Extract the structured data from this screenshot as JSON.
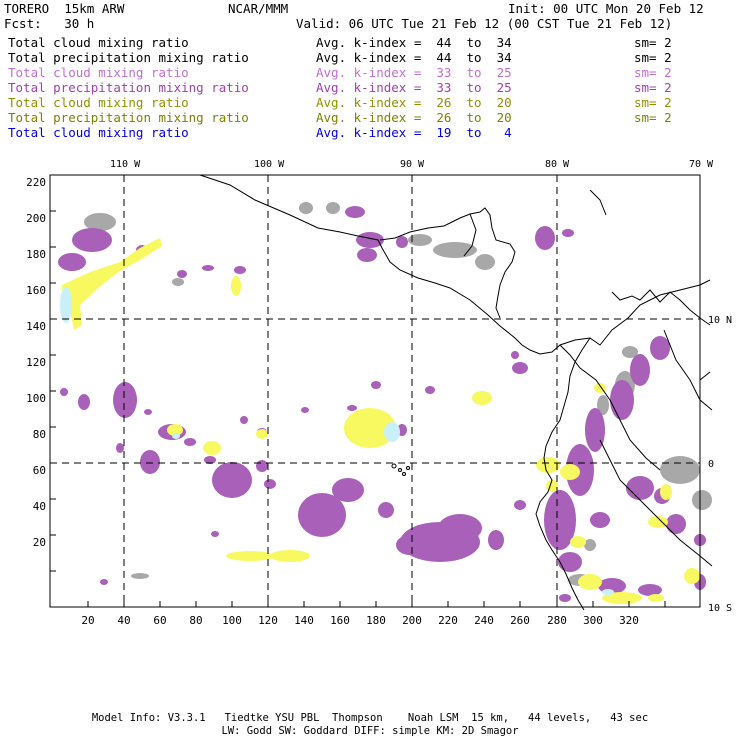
{
  "header": {
    "model": "TORERO  15km ARW",
    "org": "NCAR/MMM",
    "init": "Init: 00 UTC Mon 20 Feb 12",
    "fcst": "Fcst:   30 h",
    "valid": "Valid: 06 UTC Tue 21 Feb 12 (00 CST Tue 21 Feb 12)"
  },
  "legend": [
    {
      "name": "Total cloud mixing ratio",
      "kindex": "Avg. k-index =  44  to  34",
      "sm": "sm= 2",
      "color": "#000000"
    },
    {
      "name": "Total precipitation mixing ratio",
      "kindex": "Avg. k-index =  44  to  34",
      "sm": "sm= 2",
      "color": "#000000"
    },
    {
      "name": "Total cloud mixing ratio",
      "kindex": "Avg. k-index =  33  to  25",
      "sm": "sm= 2",
      "color": "#c070d0"
    },
    {
      "name": "Total precipitation mixing ratio",
      "kindex": "Avg. k-index =  33  to  25",
      "sm": "sm= 2",
      "color": "#a040b0"
    },
    {
      "name": "Total cloud mixing ratio",
      "kindex": "Avg. k-index =  26  to  20",
      "sm": "sm= 2",
      "color": "#909000"
    },
    {
      "name": "Total precipitation mixing ratio",
      "kindex": "Avg. k-index =  26  to  20",
      "sm": "sm= 2",
      "color": "#808000"
    },
    {
      "name": "Total cloud mixing ratio",
      "kindex": "Avg. k-index =  19  to   4",
      "sm": "",
      "color": "#0000e0"
    }
  ],
  "map": {
    "lon_labels": [
      "110 W",
      "100 W",
      "90 W",
      "80 W",
      "70 W"
    ],
    "lat_labels": [
      "10 N",
      "0",
      "10 S"
    ],
    "x_ticks": [
      "20",
      "40",
      "60",
      "80",
      "100",
      "120",
      "140",
      "160",
      "180",
      "200",
      "220",
      "240",
      "260",
      "280",
      "300",
      "320"
    ],
    "y_ticks": [
      "220",
      "200",
      "180",
      "160",
      "140",
      "120",
      "100",
      "80",
      "60",
      "40",
      "20"
    ],
    "colors": {
      "gray": "#a8a8a8",
      "purple": "#a860b8",
      "yellow": "#f8f860",
      "cyan": "#c8f0f8",
      "coast": "#000000"
    }
  },
  "footer": {
    "line1": "Model Info: V3.3.1   Tiedtke YSU PBL  Thompson    Noah LSM  15 km,   44 levels,   43 sec",
    "line2": "LW: Godd SW: Goddard DIFF: simple KM: 2D Smagor"
  }
}
